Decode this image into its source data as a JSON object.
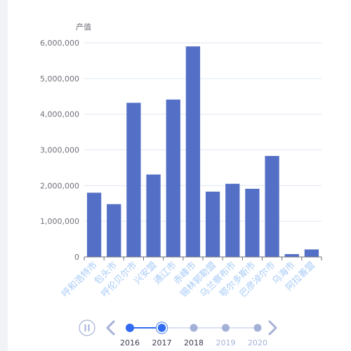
{
  "chart_data": {
    "type": "bar",
    "ylabel": "产值",
    "ylim": [
      0,
      6000000
    ],
    "yticks": [
      0,
      1000000,
      2000000,
      3000000,
      4000000,
      5000000,
      6000000
    ],
    "ytick_labels": [
      "0",
      "1,000,000",
      "2,000,000",
      "3,000,000",
      "4,000,000",
      "5,000,000",
      "6,000,000"
    ],
    "grid": true,
    "bar_color": "#5470c6",
    "categories": [
      "呼和浩特市",
      "包头市",
      "呼伦贝尔市",
      "兴安盟",
      "通辽市",
      "赤峰市",
      "锡林郭勒盟",
      "乌兰察布市",
      "鄂尔多斯市",
      "巴彦淖尔市",
      "乌海市",
      "阿拉善盟"
    ],
    "values": [
      1800000,
      1480000,
      4320000,
      2310000,
      4410000,
      5900000,
      1830000,
      2050000,
      1910000,
      2830000,
      80000,
      210000
    ]
  },
  "timeline": {
    "years": [
      "2016",
      "2017",
      "2018",
      "2019",
      "2020"
    ],
    "current_index": 1,
    "progress": 0.25,
    "active_color": "#316bf3",
    "inactive_color": "#a4b1d7",
    "play_icon": "pause-icon",
    "prev_icon": "chevron-left-icon",
    "next_icon": "chevron-right-icon"
  }
}
